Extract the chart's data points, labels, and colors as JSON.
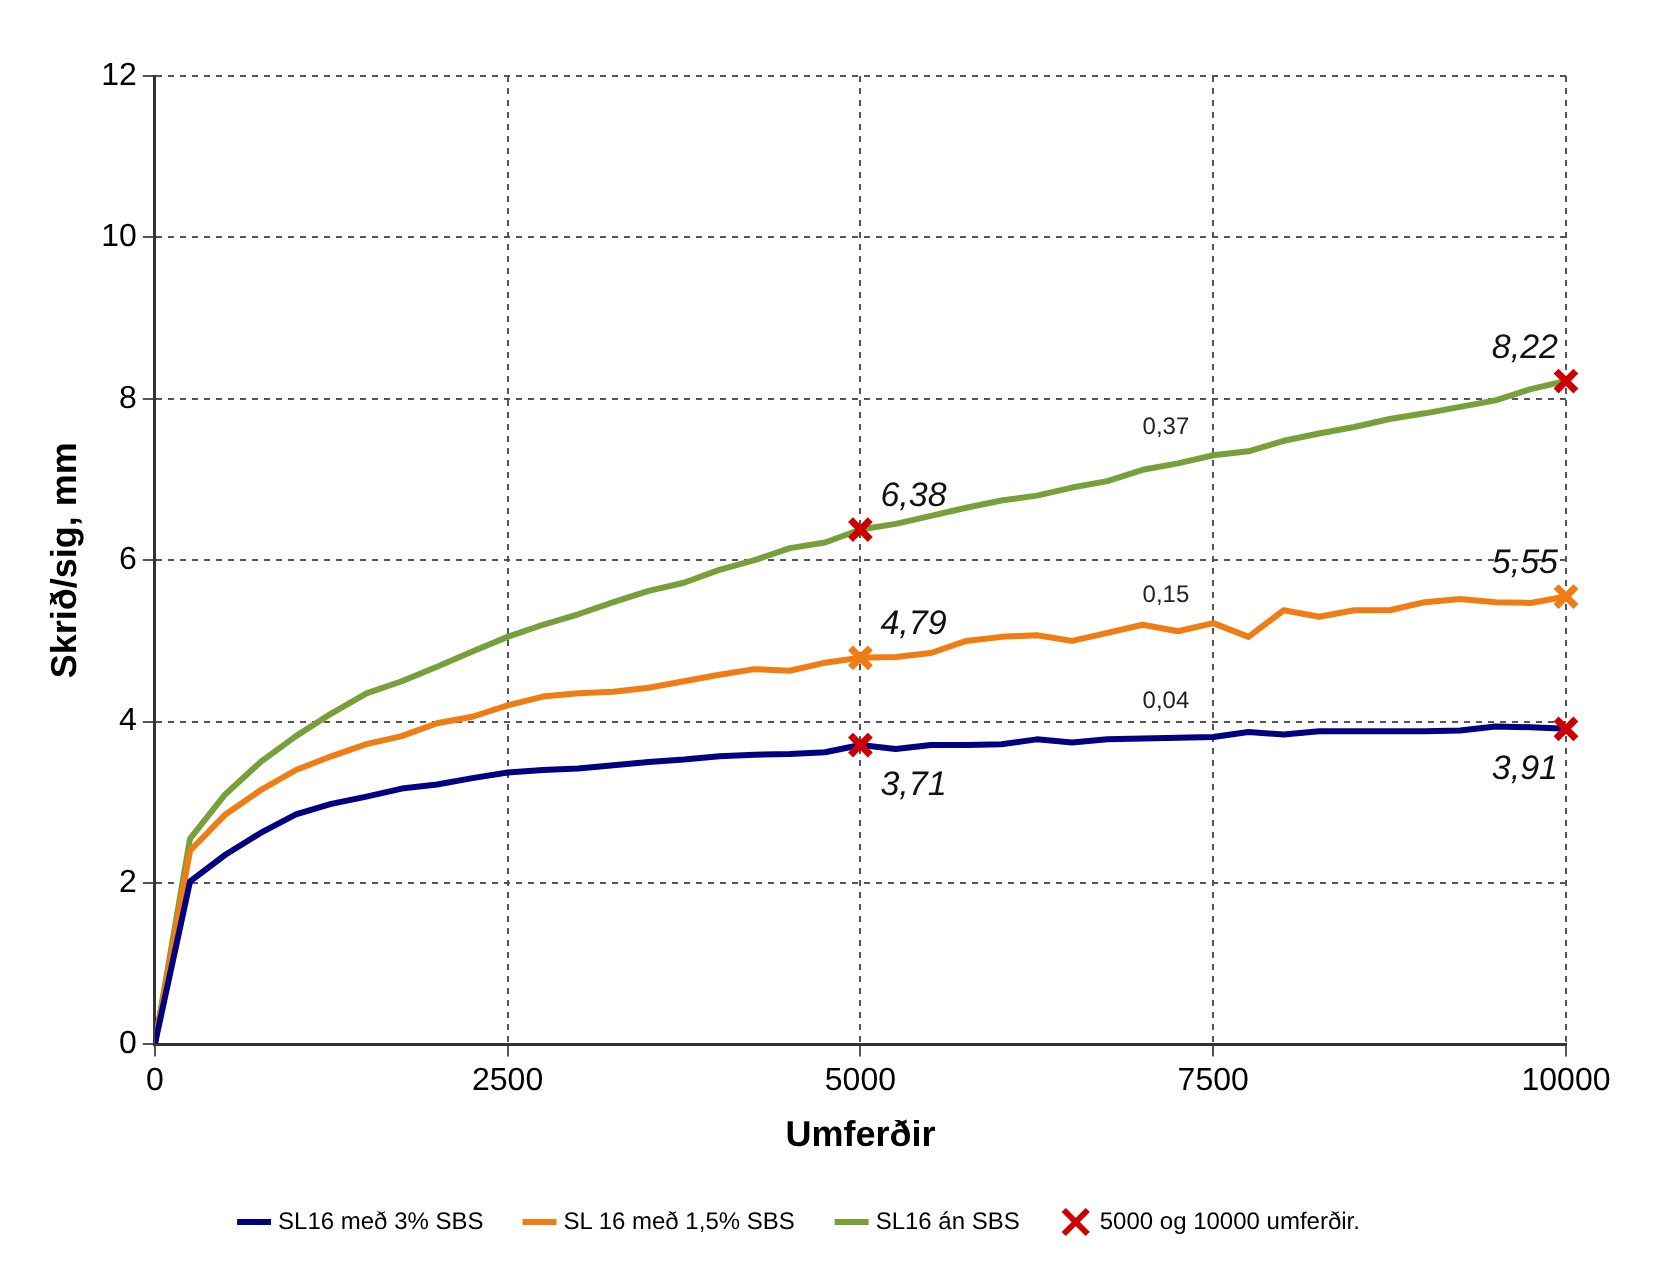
{
  "chart_data": {
    "type": "line",
    "xlabel": "Umferðir",
    "ylabel": "Skrið/sig, mm",
    "x": [
      0,
      250,
      500,
      750,
      1000,
      1250,
      1500,
      1750,
      2000,
      2250,
      2500,
      2750,
      3000,
      3250,
      3500,
      3750,
      4000,
      4250,
      4500,
      4750,
      5000,
      5250,
      5500,
      5750,
      6000,
      6250,
      6500,
      6750,
      7000,
      7250,
      7500,
      7750,
      8000,
      8250,
      8500,
      8750,
      9000,
      9250,
      9500,
      9750,
      10000
    ],
    "xlim": [
      0,
      10000
    ],
    "xticks": [
      0,
      2500,
      5000,
      7500,
      10000
    ],
    "ylim": [
      0,
      12
    ],
    "yticks": [
      0,
      2,
      4,
      6,
      8,
      10,
      12
    ],
    "grid": true,
    "legend": "bottom",
    "marker": "none",
    "line_style": "solid",
    "series": [
      {
        "name": "SL16 með 3% SBS",
        "color": "#000080",
        "values": [
          0,
          2.02,
          2.35,
          2.62,
          2.85,
          2.98,
          3.07,
          3.17,
          3.22,
          3.3,
          3.37,
          3.4,
          3.42,
          3.46,
          3.5,
          3.53,
          3.57,
          3.59,
          3.6,
          3.62,
          3.71,
          3.66,
          3.71,
          3.71,
          3.72,
          3.78,
          3.74,
          3.78,
          3.79,
          3.8,
          3.81,
          3.87,
          3.84,
          3.88,
          3.88,
          3.88,
          3.88,
          3.89,
          3.94,
          3.93,
          3.91
        ]
      },
      {
        "name": "SL 16 með 1,5% SBS",
        "color": "#f07c14",
        "values": [
          0,
          2.4,
          2.85,
          3.15,
          3.4,
          3.57,
          3.72,
          3.82,
          3.98,
          4.06,
          4.2,
          4.31,
          4.35,
          4.37,
          4.42,
          4.5,
          4.58,
          4.65,
          4.63,
          4.73,
          4.79,
          4.8,
          4.85,
          5,
          5.05,
          5.07,
          5,
          5.1,
          5.2,
          5.12,
          5.22,
          5.05,
          5.38,
          5.3,
          5.38,
          5.38,
          5.48,
          5.52,
          5.48,
          5.47,
          5.55
        ]
      },
      {
        "name": "SL16 án SBS",
        "color": "#77a03a",
        "values": [
          0,
          2.55,
          3.1,
          3.5,
          3.82,
          4.1,
          4.35,
          4.5,
          4.68,
          4.87,
          5.05,
          5.2,
          5.33,
          5.48,
          5.62,
          5.72,
          5.88,
          6,
          6.15,
          6.22,
          6.38,
          6.45,
          6.55,
          6.65,
          6.74,
          6.8,
          6.9,
          6.98,
          7.12,
          7.2,
          7.3,
          7.35,
          7.48,
          7.57,
          7.65,
          7.75,
          7.82,
          7.9,
          7.98,
          8.12,
          8.22
        ]
      },
      {
        "type": "scatter",
        "name": "5000 og 10000 umferðir.",
        "color": "#cc0000",
        "marker": "cross",
        "values": [
          null,
          null,
          null,
          null,
          null,
          null,
          null,
          null,
          null,
          null,
          null,
          null,
          null,
          null,
          null,
          null,
          null,
          null,
          null,
          null,
          3.71,
          null,
          null,
          null,
          null,
          null,
          null,
          null,
          null,
          null,
          null,
          null,
          null,
          null,
          null,
          null,
          null,
          null,
          null,
          null,
          3.91
        ],
        "value_labels": [
          null,
          null,
          null,
          null,
          null,
          null,
          null,
          null,
          null,
          null,
          null,
          null,
          null,
          null,
          null,
          null,
          null,
          null,
          null,
          null,
          "3,71",
          null,
          null,
          null,
          null,
          null,
          null,
          null,
          null,
          null,
          null,
          null,
          null,
          null,
          null,
          null,
          null,
          null,
          null,
          null,
          "3,91"
        ]
      },
      {
        "type": "scatter",
        "color": "#f07c14",
        "marker": "cross",
        "values": [
          null,
          null,
          null,
          null,
          null,
          null,
          null,
          null,
          null,
          null,
          null,
          null,
          null,
          null,
          null,
          null,
          null,
          null,
          null,
          null,
          4.79,
          null,
          null,
          null,
          null,
          null,
          null,
          null,
          null,
          null,
          null,
          null,
          null,
          null,
          null,
          null,
          null,
          null,
          null,
          null,
          5.55
        ],
        "value_labels": [
          null,
          null,
          null,
          null,
          null,
          null,
          null,
          null,
          null,
          null,
          null,
          null,
          null,
          null,
          null,
          null,
          null,
          null,
          null,
          null,
          "4,79",
          null,
          null,
          null,
          null,
          null,
          null,
          null,
          null,
          null,
          null,
          null,
          null,
          null,
          null,
          null,
          null,
          null,
          null,
          null,
          "5,55"
        ]
      },
      {
        "type": "scatter",
        "color": "#cc0000",
        "marker": "cross",
        "values": [
          null,
          null,
          null,
          null,
          null,
          null,
          null,
          null,
          null,
          null,
          null,
          null,
          null,
          null,
          null,
          null,
          null,
          null,
          null,
          null,
          6.38,
          null,
          null,
          null,
          null,
          null,
          null,
          null,
          null,
          null,
          null,
          null,
          null,
          null,
          null,
          null,
          null,
          null,
          null,
          null,
          8.22
        ],
        "value_labels": [
          null,
          null,
          null,
          null,
          null,
          null,
          null,
          null,
          null,
          null,
          null,
          null,
          null,
          null,
          null,
          null,
          null,
          null,
          null,
          null,
          "6,38",
          null,
          null,
          null,
          null,
          null,
          null,
          null,
          null,
          null,
          null,
          null,
          null,
          null,
          null,
          null,
          null,
          null,
          null,
          null,
          "8,22"
        ]
      }
    ],
    "annotations": [
      "0,37",
      "0,15",
      "0,04"
    ]
  }
}
